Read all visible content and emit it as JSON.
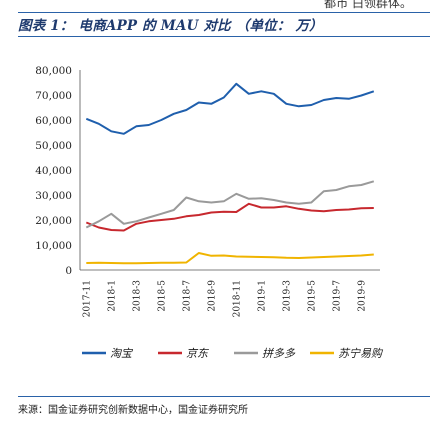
{
  "header": {
    "fragment": "都市 白领群体。",
    "figure_title": "图表 1： 电商APP 的 MAU 对比 （单位： 万）"
  },
  "footer": {
    "source": "来源：国金证券研究创新数据中心，国金证券研究所"
  },
  "colors": {
    "rule": "#2a62a8",
    "title": "#1e3a6e"
  },
  "chart_data": {
    "type": "line",
    "title": "图表 1： 电商APP 的 MAU 对比 （单位： 万）",
    "x": [
      "2017-11",
      "2017-12",
      "2018-1",
      "2018-2",
      "2018-3",
      "2018-4",
      "2018-5",
      "2018-6",
      "2018-7",
      "2018-8",
      "2018-9",
      "2018-10",
      "2018-11",
      "2018-12",
      "2019-1",
      "2019-2",
      "2019-3",
      "2019-4",
      "2019-5",
      "2019-6",
      "2019-7",
      "2019-8",
      "2019-9",
      "2019-10"
    ],
    "x_tick_labels": [
      "2017-11",
      "2018-1",
      "2018-3",
      "2018-5",
      "2018-7",
      "2018-9",
      "2018-11",
      "2019-1",
      "2019-3",
      "2019-5",
      "2019-7",
      "2019-9"
    ],
    "y_ticks": [
      0,
      10000,
      20000,
      30000,
      40000,
      50000,
      60000,
      70000,
      80000
    ],
    "y_tick_labels": [
      "0",
      "10,000",
      "20,000",
      "30,000",
      "40,000",
      "50,000",
      "60,000",
      "70,000",
      "80,000"
    ],
    "ylim": [
      0,
      80000
    ],
    "grid": false,
    "legend_position": "bottom",
    "series": [
      {
        "name": "淘宝",
        "color": "#1f5fad",
        "values": [
          60500,
          58500,
          55500,
          54500,
          57500,
          58000,
          60000,
          62500,
          64000,
          67000,
          66500,
          69000,
          74500,
          70500,
          71500,
          70500,
          66500,
          65500,
          66000,
          68000,
          68800,
          68500,
          69800,
          71500
        ]
      },
      {
        "name": "京东",
        "color": "#c7282e",
        "values": [
          19000,
          17000,
          16000,
          15800,
          18500,
          19500,
          20000,
          20500,
          21500,
          22000,
          23000,
          23300,
          23200,
          26500,
          25000,
          25000,
          25500,
          24500,
          23800,
          23500,
          24000,
          24200,
          24700,
          24800
        ]
      },
      {
        "name": "拼多多",
        "color": "#9a9a9a",
        "values": [
          17000,
          19500,
          22500,
          18500,
          19500,
          21000,
          22500,
          24000,
          29000,
          27500,
          27000,
          27500,
          30500,
          28500,
          28700,
          28000,
          27000,
          26500,
          27000,
          31500,
          32000,
          33500,
          34000,
          35500
        ]
      },
      {
        "name": "苏宁易购",
        "color": "#f0b400",
        "values": [
          2800,
          2900,
          2800,
          2700,
          2700,
          2800,
          2900,
          2900,
          3000,
          6800,
          5700,
          5800,
          5400,
          5300,
          5200,
          5100,
          4900,
          4800,
          5000,
          5200,
          5400,
          5600,
          5800,
          6200
        ]
      }
    ]
  }
}
